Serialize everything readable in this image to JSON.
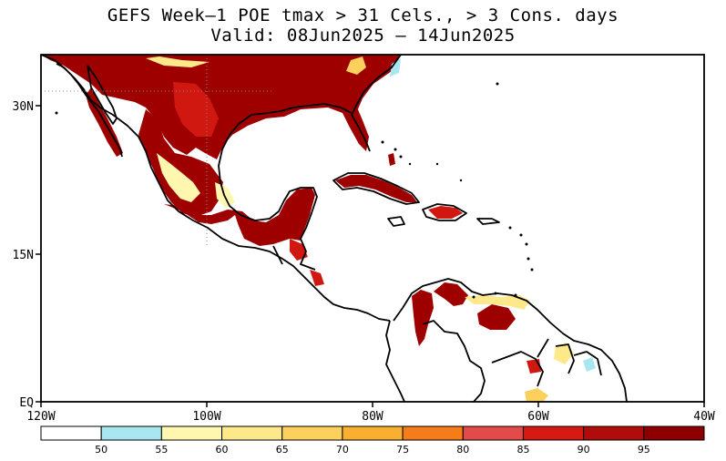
{
  "title": {
    "line1": "GEFS Week–1 POE tmax > 31 Cels., > 3 Cons. days",
    "line2": "Valid: 08Jun2025 – 14Jun2025"
  },
  "axes": {
    "y_ticks": [
      "30N",
      "15N",
      "EQ"
    ],
    "x_ticks": [
      "120W",
      "100W",
      "80W",
      "60W",
      "40W"
    ]
  },
  "colorbar": {
    "labels": [
      "50",
      "55",
      "60",
      "65",
      "70",
      "75",
      "80",
      "85",
      "90",
      "95"
    ],
    "colors": [
      "#ffffff",
      "#a8e6f0",
      "#fff7b0",
      "#fde88a",
      "#fbd05c",
      "#f9b031",
      "#f47d1a",
      "#e34b4b",
      "#d51a14",
      "#b00c0c",
      "#8e0000"
    ]
  },
  "map": {
    "lon_range": [
      -120,
      -40
    ],
    "lat_range": [
      0,
      35
    ],
    "colors": {
      "high": "#9e0000",
      "mid": "#d01810",
      "light": "#fde88a",
      "cyan": "#a8e6f0",
      "coast": "#000000"
    }
  }
}
